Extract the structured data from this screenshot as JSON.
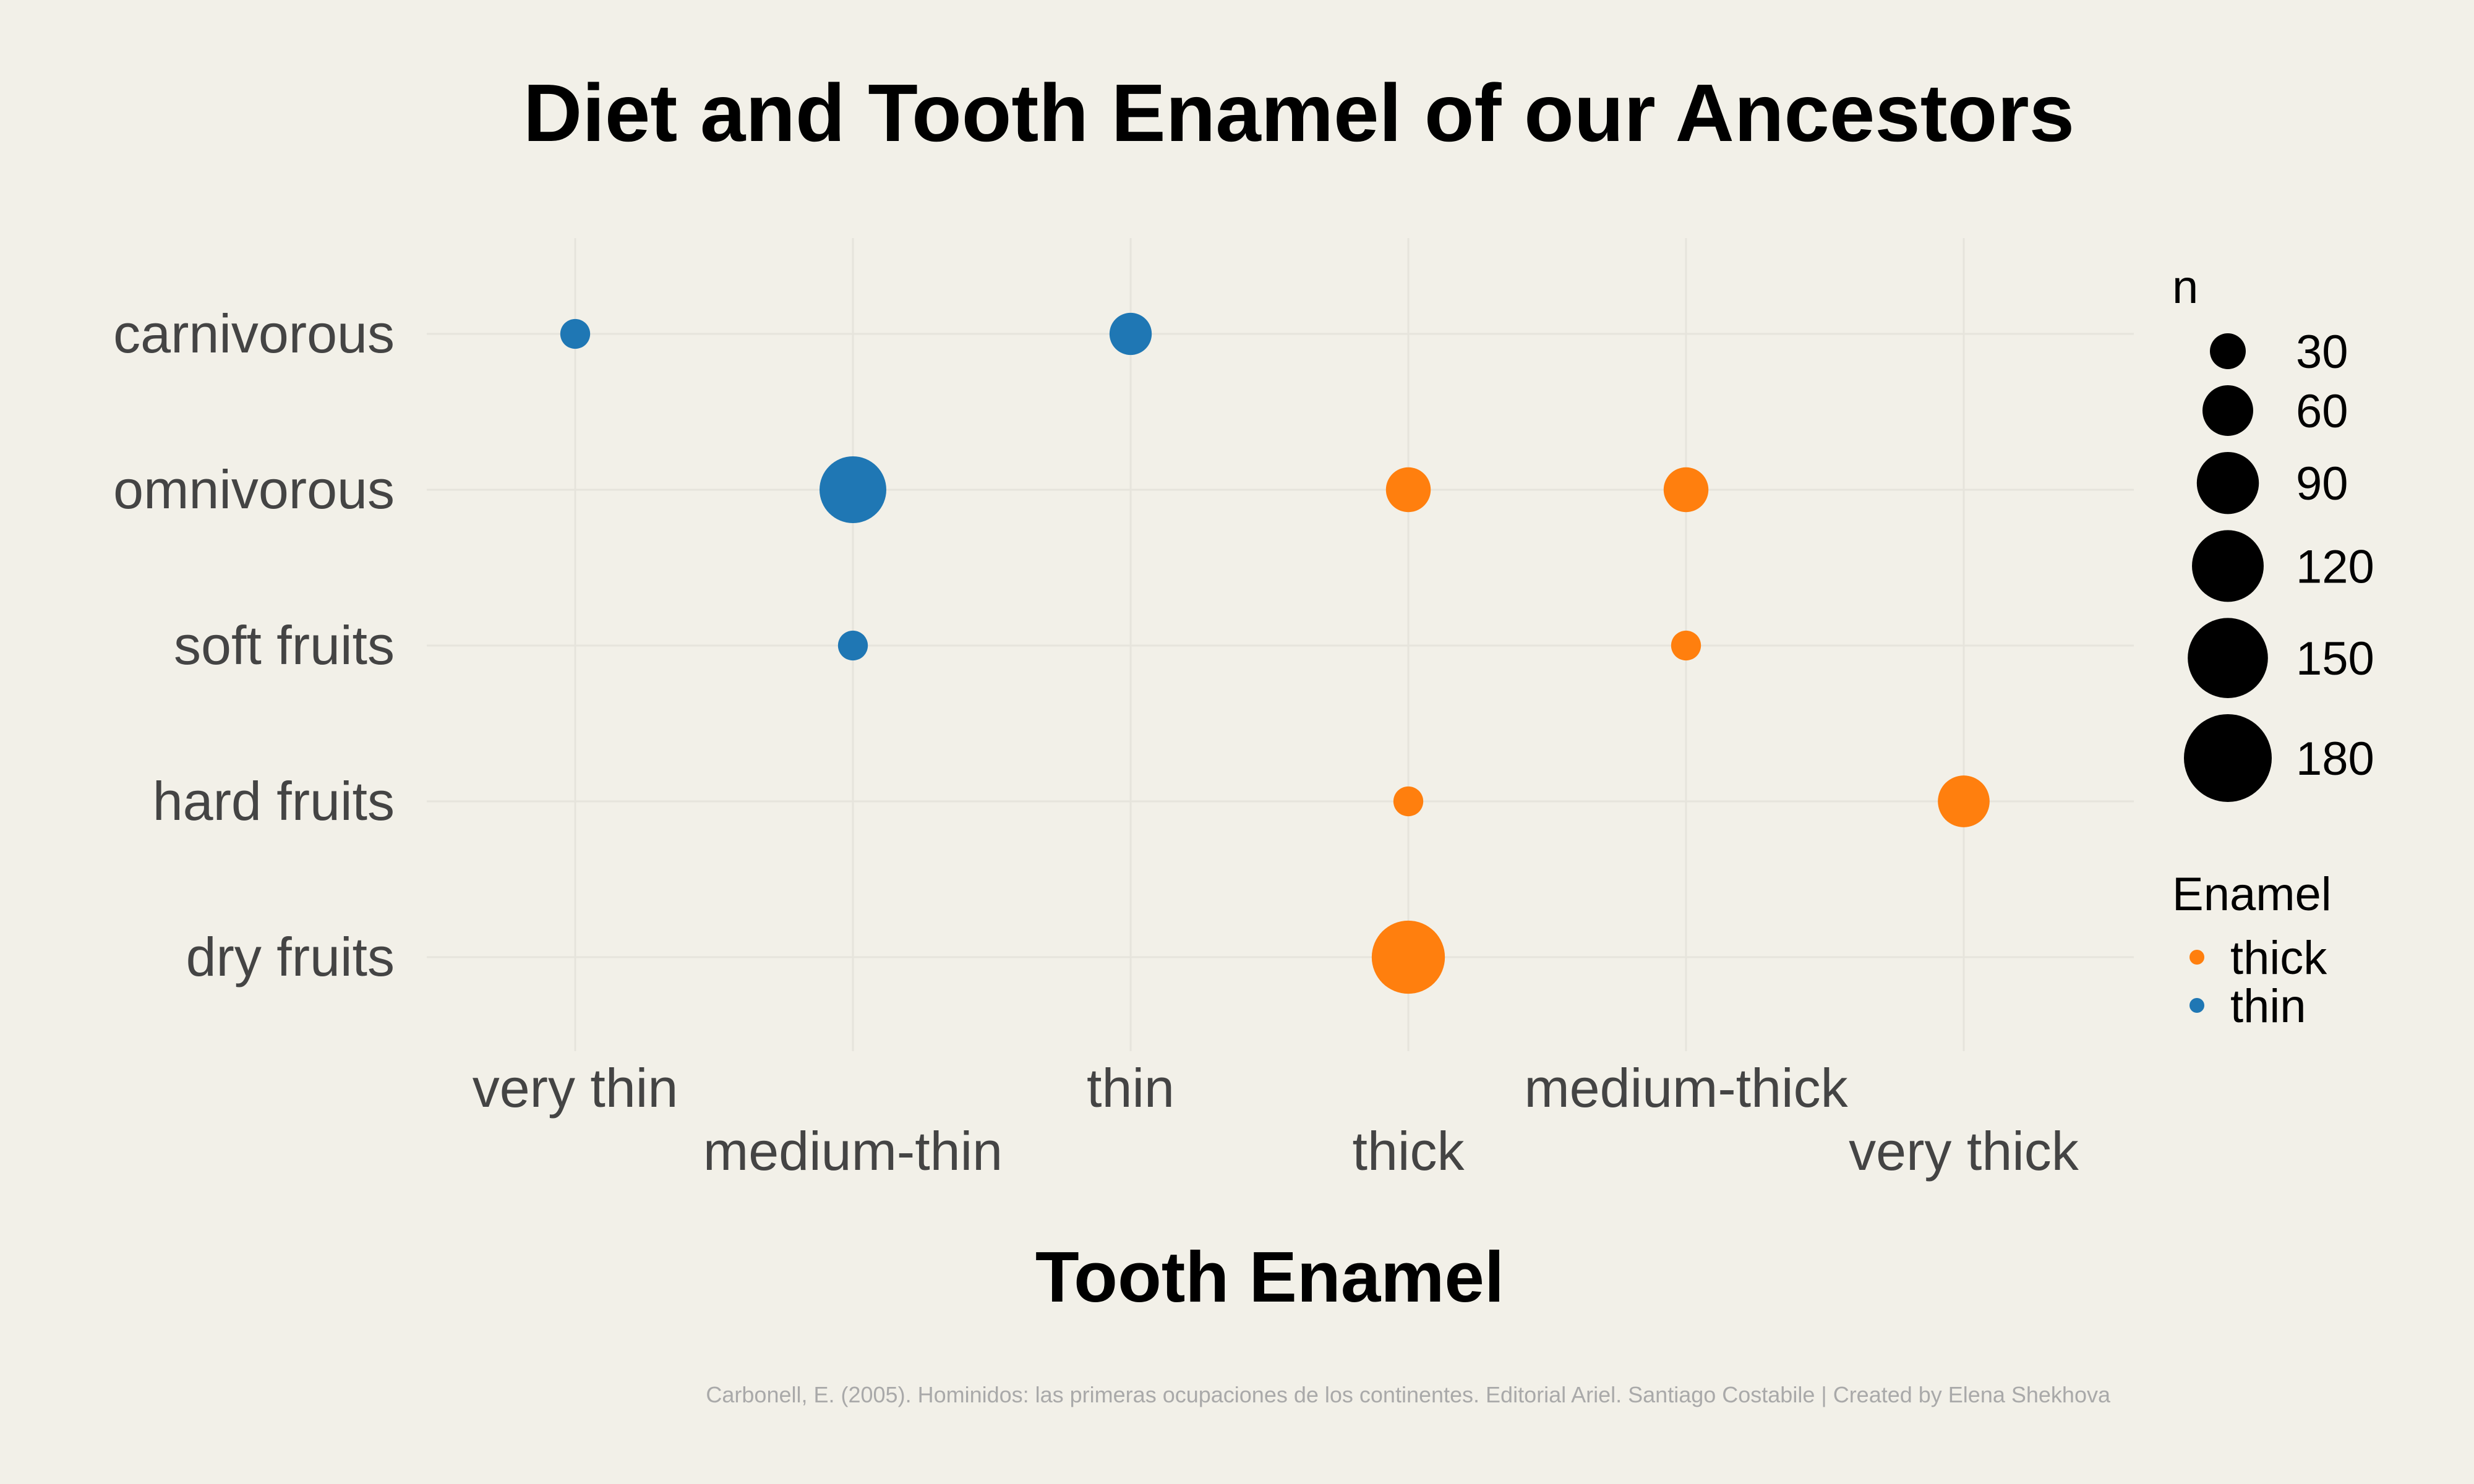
{
  "chart_data": {
    "type": "scatter",
    "title": "Diet and Tooth Enamel of our Ancestors",
    "xlabel": "Tooth Enamel",
    "ylabel": "",
    "x_categories": [
      "very thin",
      "medium-thin",
      "thin",
      "thick",
      "medium-thick",
      "very thick"
    ],
    "y_categories": [
      "carnivorous",
      "omnivorous",
      "soft fruits",
      "hard fruits",
      "dry fruits"
    ],
    "points": [
      {
        "x": "very thin",
        "y": "carnivorous",
        "n": 20,
        "enamel": "thin"
      },
      {
        "x": "thin",
        "y": "carnivorous",
        "n": 40,
        "enamel": "thin"
      },
      {
        "x": "medium-thin",
        "y": "omnivorous",
        "n": 100,
        "enamel": "thin"
      },
      {
        "x": "thick",
        "y": "omnivorous",
        "n": 45,
        "enamel": "thick"
      },
      {
        "x": "medium-thick",
        "y": "omnivorous",
        "n": 45,
        "enamel": "thick"
      },
      {
        "x": "medium-thin",
        "y": "soft fruits",
        "n": 20,
        "enamel": "thin"
      },
      {
        "x": "medium-thick",
        "y": "soft fruits",
        "n": 20,
        "enamel": "thick"
      },
      {
        "x": "thick",
        "y": "hard fruits",
        "n": 20,
        "enamel": "thick"
      },
      {
        "x": "very thick",
        "y": "hard fruits",
        "n": 60,
        "enamel": "thick"
      },
      {
        "x": "thick",
        "y": "dry fruits",
        "n": 120,
        "enamel": "thick"
      }
    ],
    "legend_size": {
      "title": "n",
      "values": [
        30,
        60,
        90,
        120,
        150,
        180
      ]
    },
    "legend_color": {
      "title": "Enamel",
      "entries": [
        {
          "label": "thick",
          "color": "#ff7f0e"
        },
        {
          "label": "thin",
          "color": "#1f77b4"
        }
      ]
    },
    "legend_placement": "right",
    "grid": true,
    "caption": "Carbonell, E. (2005). Hominidos: las primeras ocupaciones de los continentes. Editorial Ariel. Santiago Costabile | Created by Elena Shekhova"
  }
}
